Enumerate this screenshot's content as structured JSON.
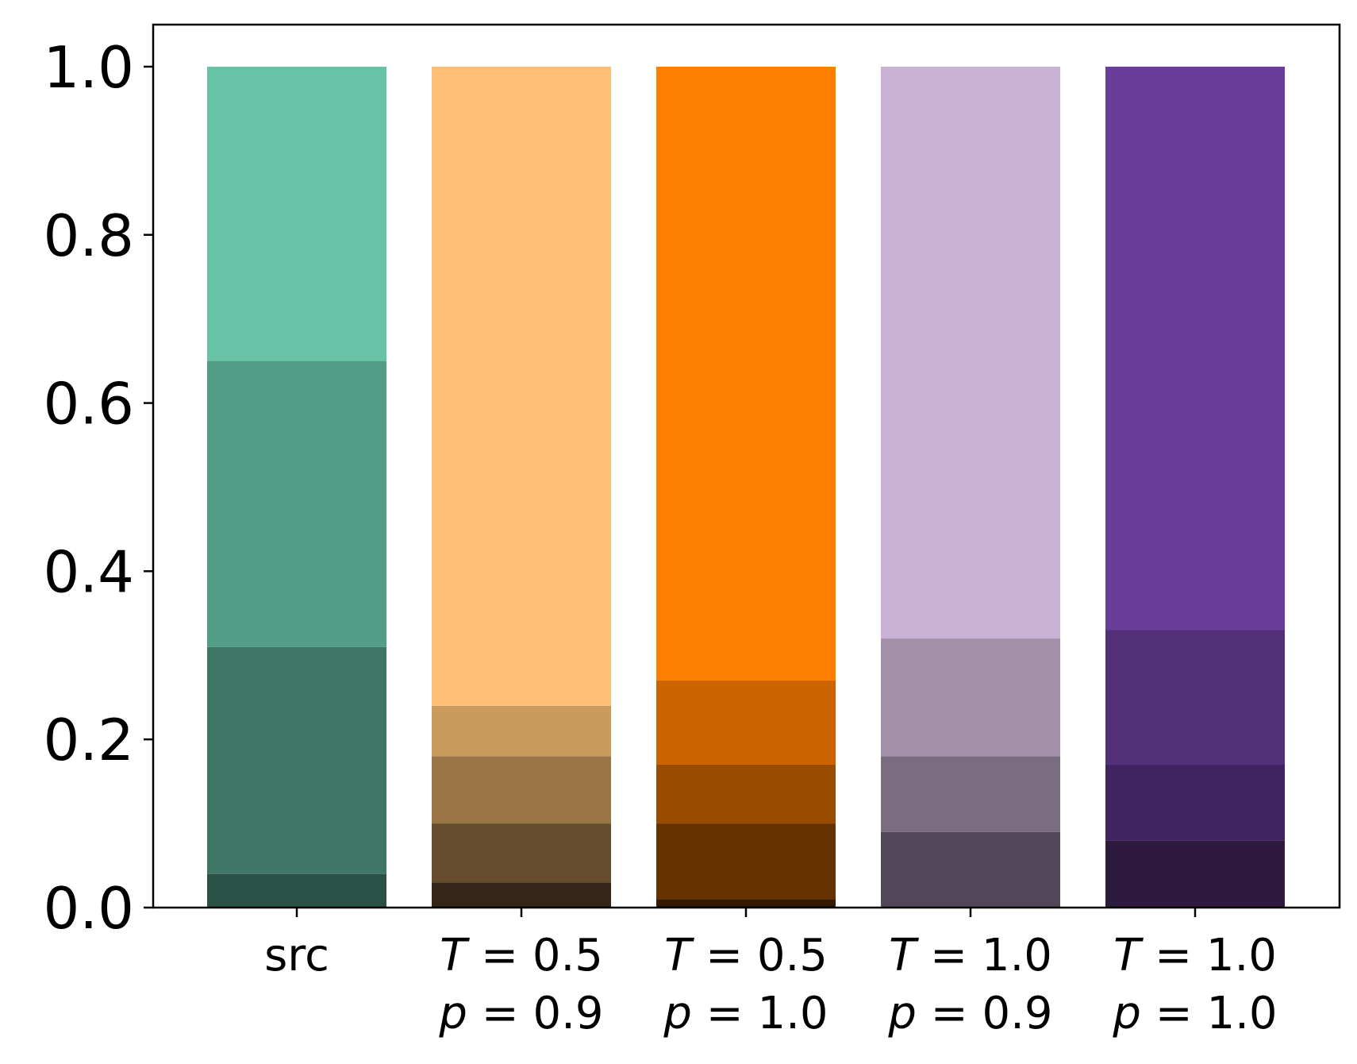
{
  "chart_data": {
    "type": "bar",
    "stacked": true,
    "title": "",
    "xlabel": "",
    "ylabel": "",
    "ylim": [
      0,
      1.05
    ],
    "yticks": [
      "0.0",
      "0.2",
      "0.4",
      "0.6",
      "0.8",
      "1.0"
    ],
    "ytick_values": [
      0,
      0.2,
      0.4,
      0.6,
      0.8,
      1.0
    ],
    "grid": false,
    "legend": "none",
    "categories": [
      {
        "line1_var": "",
        "line1_val": "src",
        "line2_var": "",
        "line2_val": ""
      },
      {
        "line1_var": "T",
        "line1_val": "= 0.5",
        "line2_var": "p",
        "line2_val": "= 0.9"
      },
      {
        "line1_var": "T",
        "line1_val": "= 0.5",
        "line2_var": "p",
        "line2_val": "= 1.0"
      },
      {
        "line1_var": "T",
        "line1_val": "= 1.0",
        "line2_var": "p",
        "line2_val": "= 0.9"
      },
      {
        "line1_var": "T",
        "line1_val": "= 1.0",
        "line2_var": "p",
        "line2_val": "= 1.0"
      }
    ],
    "bars": [
      {
        "segments": [
          0.04,
          0.27,
          0.34,
          0.35
        ],
        "colors": [
          "#2a5145",
          "#3f7666",
          "#539d86",
          "#66c3a6"
        ]
      },
      {
        "segments": [
          0.03,
          0.07,
          0.08,
          0.06,
          0.76
        ],
        "colors": [
          "#342516",
          "#664c2e",
          "#997546",
          "#cb9a5d",
          "#fcbf75"
        ]
      },
      {
        "segments": [
          0.01,
          0.09,
          0.07,
          0.1,
          0.73
        ],
        "colors": [
          "#341a00",
          "#663200",
          "#994b00",
          "#cc6400",
          "#ff7f00"
        ]
      },
      {
        "segments": [
          0.09,
          0.09,
          0.14,
          0.68
        ],
        "colors": [
          "#534859",
          "#7a6d7f",
          "#a28fa9",
          "#c9b2d6"
        ]
      },
      {
        "segments": [
          0.08,
          0.09,
          0.16,
          0.67
        ],
        "colors": [
          "#2d1a3e",
          "#402360",
          "#532f77",
          "#6a3d9a"
        ]
      }
    ]
  }
}
